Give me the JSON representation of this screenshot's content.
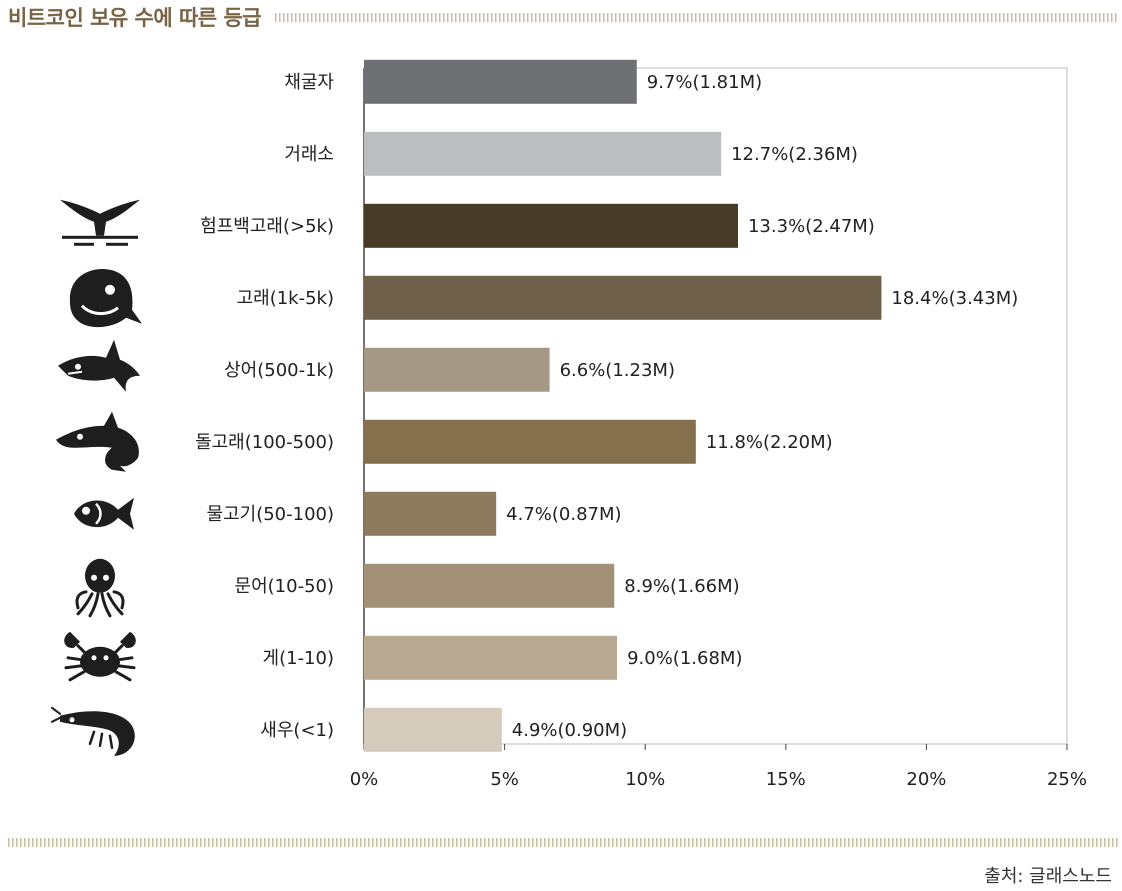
{
  "title": "비트코인 보유 수에 따른 등급",
  "source": "출처: 글래스노드",
  "colors": {
    "title": "#7a6446",
    "axis": "#444444",
    "frame": "#bdbdbd",
    "icon": "#1e1e1e"
  },
  "chart_data": {
    "type": "bar",
    "orientation": "horizontal",
    "title": "비트코인 보유 수에 따른 등급",
    "xlabel": "",
    "ylabel": "",
    "xlim": [
      0,
      25
    ],
    "xticks": [
      "0%",
      "5%",
      "10%",
      "15%",
      "20%",
      "25%"
    ],
    "grid": false,
    "legend": "none",
    "categories": [
      {
        "label": "채굴자",
        "value": 9.7,
        "value_label": "9.7%(1.81M)",
        "color": "#6f7073",
        "icon": ""
      },
      {
        "label": "거래소",
        "value": 12.7,
        "value_label": "12.7%(2.36M)",
        "color": "#bcbdbf",
        "icon": ""
      },
      {
        "label": "험프백고래(>5k)",
        "value": 13.3,
        "value_label": "13.3%(2.47M)",
        "color": "#473a26",
        "icon": "humpback-whale-tail-icon"
      },
      {
        "label": "고래(1k-5k)",
        "value": 18.4,
        "value_label": "18.4%(3.43M)",
        "color": "#6e604a",
        "icon": "whale-icon"
      },
      {
        "label": "상어(500-1k)",
        "value": 6.6,
        "value_label": "6.6%(1.23M)",
        "color": "#a59985",
        "icon": "shark-icon"
      },
      {
        "label": "돌고래(100-500)",
        "value": 11.8,
        "value_label": "11.8%(2.20M)",
        "color": "#85704e",
        "icon": "dolphin-icon"
      },
      {
        "label": "물고기(50-100)",
        "value": 4.7,
        "value_label": "4.7%(0.87M)",
        "color": "#8e7a5e",
        "icon": "fish-icon"
      },
      {
        "label": "문어(10-50)",
        "value": 8.9,
        "value_label": "8.9%(1.66M)",
        "color": "#a29177",
        "icon": "octopus-icon"
      },
      {
        "label": "게(1-10)",
        "value": 9.0,
        "value_label": "9.0%(1.68M)",
        "color": "#b8aa92",
        "icon": "crab-icon"
      },
      {
        "label": "새우(<1)",
        "value": 4.9,
        "value_label": "4.9%(0.90M)",
        "color": "#d4cbbc",
        "icon": "shrimp-icon"
      }
    ]
  }
}
